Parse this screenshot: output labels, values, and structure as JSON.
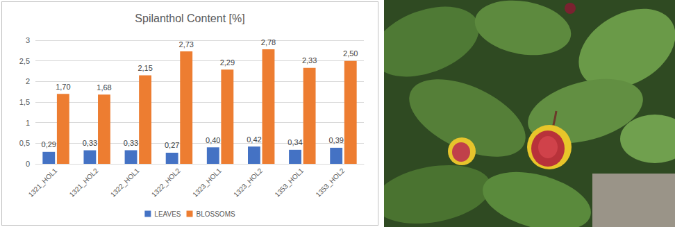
{
  "chart_data": {
    "type": "bar",
    "title": "Spilanthol Content [%]",
    "categories": [
      "1321_HOL1",
      "1321_HOL2",
      "1322_HOL1",
      "1322_HOL2",
      "1323_HOL1",
      "1323_HOL2",
      "1353_HOL1",
      "1353_HOL2"
    ],
    "series": [
      {
        "name": "LEAVES",
        "color": "#4472c4",
        "values": [
          0.29,
          0.33,
          0.33,
          0.27,
          0.4,
          0.42,
          0.34,
          0.39
        ],
        "value_labels": [
          "0,29",
          "0,33",
          "0,33",
          "0,27",
          "0,40",
          "0,42",
          "0,34",
          "0,39"
        ]
      },
      {
        "name": "BLOSSOMS",
        "color": "#ed7d31",
        "values": [
          1.7,
          1.68,
          2.15,
          2.73,
          2.29,
          2.78,
          2.33,
          2.5
        ],
        "value_labels": [
          "1,70",
          "1,68",
          "2,15",
          "2,73",
          "2,29",
          "2,78",
          "2,33",
          "2,50"
        ]
      }
    ],
    "ylim": [
      0,
      3
    ],
    "yticks": [
      0,
      {
        "value": 0.5,
        "label": "0,5"
      },
      1,
      {
        "value": 1.5,
        "label": "1,5"
      },
      2,
      {
        "value": 2.5,
        "label": "2,5"
      },
      3
    ],
    "grid": true,
    "legend": "bottom",
    "data_labels": true
  }
}
